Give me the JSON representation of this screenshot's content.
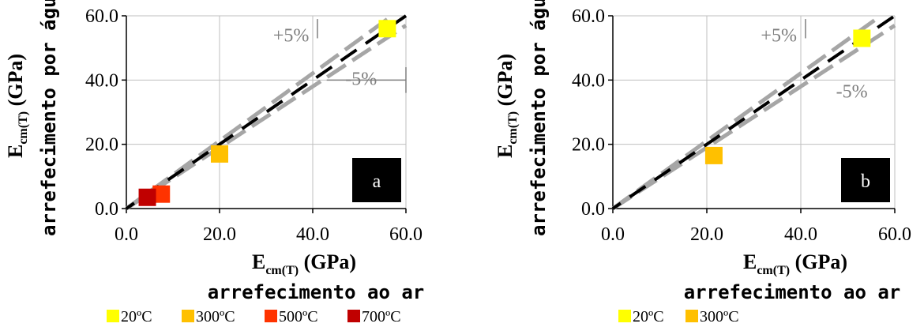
{
  "chart_data": [
    {
      "type": "scatter",
      "panel_label": "a",
      "xlim": [
        0,
        60
      ],
      "ylim": [
        0,
        60
      ],
      "x_ticks": [
        "0.0",
        "20.0",
        "40.0",
        "60.0"
      ],
      "y_ticks": [
        "0.0",
        "20.0",
        "40.0",
        "60.0"
      ],
      "grid": true,
      "xlabel_main": "E",
      "xlabel_sub": "cm(T)",
      "xlabel_unit": " (GPa)",
      "xlabel_line2": "arrefecimento ao ar",
      "ylabel_main": "E",
      "ylabel_sub": "cm(T)",
      "ylabel_unit": " (GPa)",
      "ylabel_line2": "arrefecimento por água",
      "annotations": [
        "+5%",
        "-5%"
      ],
      "series": [
        {
          "name": "20ºC",
          "color": "#ffff00",
          "x": [
            56
          ],
          "y": [
            56
          ]
        },
        {
          "name": "300ºC",
          "color": "#ffc000",
          "x": [
            20
          ],
          "y": [
            17
          ]
        },
        {
          "name": "500ºC",
          "color": "#ff3300",
          "x": [
            7.5
          ],
          "y": [
            4.5
          ]
        },
        {
          "name": "700ºC",
          "color": "#c00000",
          "x": [
            4.5
          ],
          "y": [
            3.5
          ]
        }
      ]
    },
    {
      "type": "scatter",
      "panel_label": "b",
      "xlim": [
        0,
        60
      ],
      "ylim": [
        0,
        60
      ],
      "x_ticks": [
        "0.0",
        "20.0",
        "40.0",
        "60.0"
      ],
      "y_ticks": [
        "0.0",
        "20.0",
        "40.0",
        "60.0"
      ],
      "grid": true,
      "xlabel_main": "E",
      "xlabel_sub": "cm(T)",
      "xlabel_unit": " (GPa)",
      "xlabel_line2": "arrefecimento ao ar",
      "ylabel_main": "E",
      "ylabel_sub": "cm(T)",
      "ylabel_unit": " (GPa)",
      "ylabel_line2": "arrefecimento por água",
      "annotations": [
        "+5%",
        "-5%"
      ],
      "series": [
        {
          "name": "20ºC",
          "color": "#ffff00",
          "x": [
            53
          ],
          "y": [
            53
          ]
        },
        {
          "name": "300ºC",
          "color": "#ffc000",
          "x": [
            21.5
          ],
          "y": [
            16.5
          ]
        }
      ]
    }
  ],
  "line_colors": {
    "reference": "#000000",
    "bounds": "#a6a6a6"
  },
  "badge_color": "#000000"
}
